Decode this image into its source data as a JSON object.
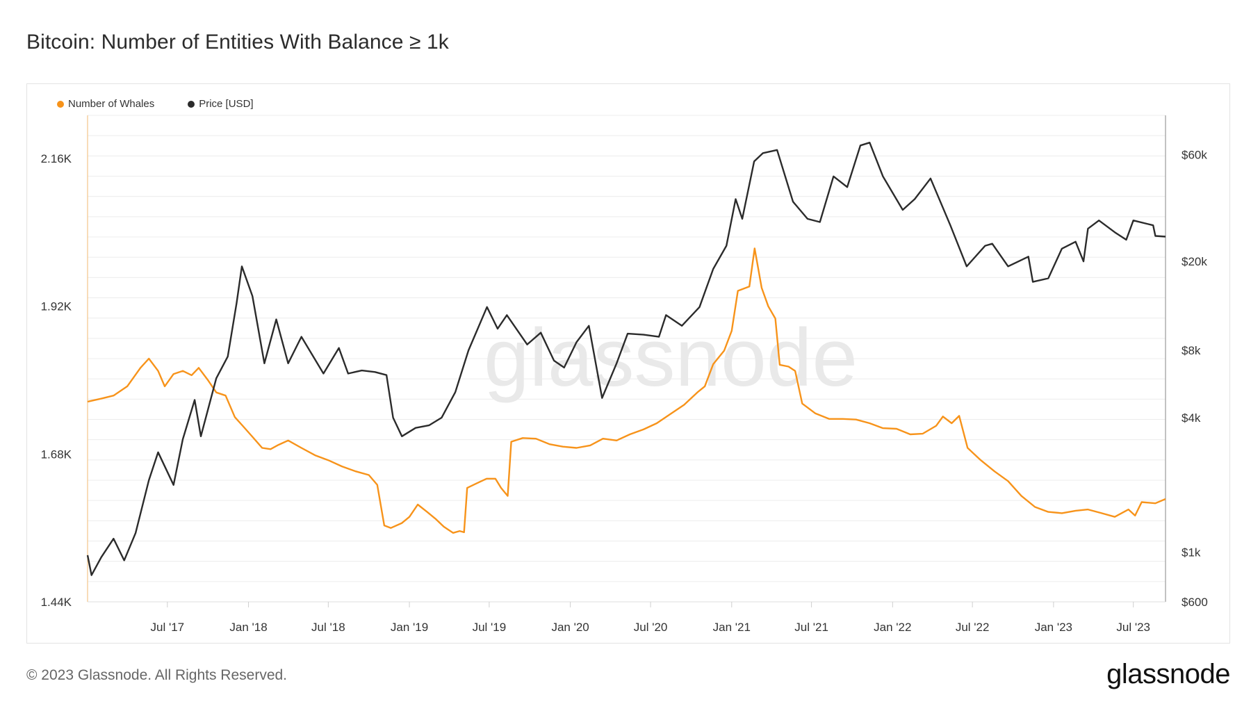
{
  "title": "Bitcoin: Number of Entities With Balance ≥ 1k",
  "footer": {
    "copyright": "© 2023 Glassnode. All Rights Reserved.",
    "logo": "glassnode",
    "watermark": "glassnode"
  },
  "colors": {
    "whales": "#f7931a",
    "price": "#2b2b2b",
    "grid": "#ececec",
    "axis_text": "#333333"
  },
  "chart_data": {
    "type": "line",
    "x_range": [
      "2017-01-01",
      "2023-09-12"
    ],
    "x_ticks": [
      {
        "date": "2017-07-01",
        "label": "Jul '17"
      },
      {
        "date": "2018-01-01",
        "label": "Jan '18"
      },
      {
        "date": "2018-07-01",
        "label": "Jul '18"
      },
      {
        "date": "2019-01-01",
        "label": "Jan '19"
      },
      {
        "date": "2019-07-01",
        "label": "Jul '19"
      },
      {
        "date": "2020-01-01",
        "label": "Jan '20"
      },
      {
        "date": "2020-07-01",
        "label": "Jul '20"
      },
      {
        "date": "2021-01-01",
        "label": "Jan '21"
      },
      {
        "date": "2021-07-01",
        "label": "Jul '21"
      },
      {
        "date": "2022-01-01",
        "label": "Jan '22"
      },
      {
        "date": "2022-07-01",
        "label": "Jul '22"
      },
      {
        "date": "2023-01-01",
        "label": "Jan '23"
      },
      {
        "date": "2023-07-01",
        "label": "Jul '23"
      }
    ],
    "y_left": {
      "scale": "linear",
      "range": [
        1440,
        2230
      ],
      "ticks": [
        {
          "value": 1440,
          "label": "1.44K"
        },
        {
          "value": 1680,
          "label": "1.68K"
        },
        {
          "value": 1920,
          "label": "1.92K"
        },
        {
          "value": 2160,
          "label": "2.16K"
        }
      ]
    },
    "y_right": {
      "scale": "log",
      "range": [
        600,
        90000
      ],
      "ticks": [
        {
          "value": 600,
          "label": "$600"
        },
        {
          "value": 1000,
          "label": "$1k"
        },
        {
          "value": 4000,
          "label": "$4k"
        },
        {
          "value": 8000,
          "label": "$8k"
        },
        {
          "value": 20000,
          "label": "$20k"
        },
        {
          "value": 60000,
          "label": "$60k"
        }
      ]
    },
    "legend_position": "top-left",
    "grid": true,
    "series": [
      {
        "name": "Number of Whales",
        "axis": "left",
        "points": [
          [
            "2017-01-01",
            1765
          ],
          [
            "2017-02-01",
            1770
          ],
          [
            "2017-03-01",
            1775
          ],
          [
            "2017-04-01",
            1790
          ],
          [
            "2017-05-01",
            1820
          ],
          [
            "2017-05-20",
            1835
          ],
          [
            "2017-06-10",
            1815
          ],
          [
            "2017-06-25",
            1790
          ],
          [
            "2017-07-15",
            1810
          ],
          [
            "2017-08-05",
            1815
          ],
          [
            "2017-08-25",
            1808
          ],
          [
            "2017-09-10",
            1820
          ],
          [
            "2017-10-01",
            1800
          ],
          [
            "2017-10-20",
            1780
          ],
          [
            "2017-11-10",
            1775
          ],
          [
            "2017-12-01",
            1740
          ],
          [
            "2017-12-20",
            1725
          ],
          [
            "2018-01-10",
            1708
          ],
          [
            "2018-02-01",
            1690
          ],
          [
            "2018-02-20",
            1688
          ],
          [
            "2018-03-10",
            1695
          ],
          [
            "2018-04-01",
            1702
          ],
          [
            "2018-05-01",
            1690
          ],
          [
            "2018-06-01",
            1678
          ],
          [
            "2018-07-01",
            1670
          ],
          [
            "2018-08-01",
            1660
          ],
          [
            "2018-09-01",
            1652
          ],
          [
            "2018-10-01",
            1646
          ],
          [
            "2018-10-20",
            1630
          ],
          [
            "2018-11-05",
            1564
          ],
          [
            "2018-11-20",
            1560
          ],
          [
            "2018-12-15",
            1568
          ],
          [
            "2019-01-01",
            1578
          ],
          [
            "2019-01-20",
            1598
          ],
          [
            "2019-02-10",
            1586
          ],
          [
            "2019-03-01",
            1575
          ],
          [
            "2019-03-20",
            1562
          ],
          [
            "2019-04-10",
            1552
          ],
          [
            "2019-04-25",
            1555
          ],
          [
            "2019-05-05",
            1553
          ],
          [
            "2019-05-12",
            1625
          ],
          [
            "2019-06-01",
            1632
          ],
          [
            "2019-06-25",
            1640
          ],
          [
            "2019-07-15",
            1640
          ],
          [
            "2019-07-28",
            1625
          ],
          [
            "2019-08-12",
            1612
          ],
          [
            "2019-08-20",
            1700
          ],
          [
            "2019-09-15",
            1706
          ],
          [
            "2019-10-15",
            1705
          ],
          [
            "2019-11-15",
            1696
          ],
          [
            "2019-12-15",
            1692
          ],
          [
            "2020-01-15",
            1690
          ],
          [
            "2020-02-15",
            1694
          ],
          [
            "2020-03-15",
            1705
          ],
          [
            "2020-04-15",
            1702
          ],
          [
            "2020-05-15",
            1712
          ],
          [
            "2020-06-15",
            1720
          ],
          [
            "2020-07-15",
            1730
          ],
          [
            "2020-08-15",
            1745
          ],
          [
            "2020-09-15",
            1760
          ],
          [
            "2020-10-15",
            1780
          ],
          [
            "2020-11-01",
            1790
          ],
          [
            "2020-11-20",
            1826
          ],
          [
            "2020-12-15",
            1848
          ],
          [
            "2021-01-01",
            1880
          ],
          [
            "2021-01-15",
            1945
          ],
          [
            "2021-02-10",
            1952
          ],
          [
            "2021-02-22",
            2014
          ],
          [
            "2021-03-10",
            1950
          ],
          [
            "2021-03-25",
            1920
          ],
          [
            "2021-04-10",
            1900
          ],
          [
            "2021-04-20",
            1825
          ],
          [
            "2021-05-10",
            1822
          ],
          [
            "2021-05-25",
            1815
          ],
          [
            "2021-06-10",
            1762
          ],
          [
            "2021-07-10",
            1746
          ],
          [
            "2021-08-10",
            1737
          ],
          [
            "2021-09-10",
            1737
          ],
          [
            "2021-10-10",
            1736
          ],
          [
            "2021-11-10",
            1730
          ],
          [
            "2021-12-10",
            1722
          ],
          [
            "2022-01-10",
            1721
          ],
          [
            "2022-02-10",
            1712
          ],
          [
            "2022-03-10",
            1713
          ],
          [
            "2022-04-10",
            1726
          ],
          [
            "2022-04-25",
            1741
          ],
          [
            "2022-05-15",
            1730
          ],
          [
            "2022-06-01",
            1742
          ],
          [
            "2022-06-20",
            1690
          ],
          [
            "2022-07-20",
            1670
          ],
          [
            "2022-08-20",
            1652
          ],
          [
            "2022-09-20",
            1636
          ],
          [
            "2022-10-20",
            1612
          ],
          [
            "2022-11-20",
            1594
          ],
          [
            "2022-12-20",
            1586
          ],
          [
            "2023-01-20",
            1584
          ],
          [
            "2023-02-20",
            1588
          ],
          [
            "2023-03-20",
            1590
          ],
          [
            "2023-04-20",
            1584
          ],
          [
            "2023-05-20",
            1578
          ],
          [
            "2023-06-20",
            1590
          ],
          [
            "2023-07-05",
            1580
          ],
          [
            "2023-07-20",
            1602
          ],
          [
            "2023-08-20",
            1600
          ],
          [
            "2023-09-12",
            1607
          ]
        ]
      },
      {
        "name": "Price [USD]",
        "axis": "right",
        "points": [
          [
            "2017-01-01",
            970
          ],
          [
            "2017-01-10",
            790
          ],
          [
            "2017-02-01",
            950
          ],
          [
            "2017-03-01",
            1150
          ],
          [
            "2017-03-25",
            920
          ],
          [
            "2017-04-20",
            1220
          ],
          [
            "2017-05-20",
            2100
          ],
          [
            "2017-06-10",
            2800
          ],
          [
            "2017-07-15",
            2000
          ],
          [
            "2017-08-05",
            3200
          ],
          [
            "2017-09-01",
            4800
          ],
          [
            "2017-09-15",
            3300
          ],
          [
            "2017-10-20",
            6000
          ],
          [
            "2017-11-15",
            7500
          ],
          [
            "2017-12-05",
            13000
          ],
          [
            "2017-12-17",
            19000
          ],
          [
            "2018-01-10",
            14000
          ],
          [
            "2018-02-06",
            7000
          ],
          [
            "2018-03-05",
            11000
          ],
          [
            "2018-04-01",
            7000
          ],
          [
            "2018-05-01",
            9200
          ],
          [
            "2018-06-20",
            6300
          ],
          [
            "2018-07-25",
            8200
          ],
          [
            "2018-08-15",
            6300
          ],
          [
            "2018-09-15",
            6500
          ],
          [
            "2018-10-15",
            6400
          ],
          [
            "2018-11-10",
            6200
          ],
          [
            "2018-11-25",
            4000
          ],
          [
            "2018-12-15",
            3300
          ],
          [
            "2019-01-15",
            3600
          ],
          [
            "2019-02-15",
            3700
          ],
          [
            "2019-03-15",
            4000
          ],
          [
            "2019-04-15",
            5200
          ],
          [
            "2019-05-15",
            8000
          ],
          [
            "2019-06-26",
            12500
          ],
          [
            "2019-07-20",
            10000
          ],
          [
            "2019-08-10",
            11500
          ],
          [
            "2019-09-25",
            8500
          ],
          [
            "2019-10-26",
            9600
          ],
          [
            "2019-11-25",
            7200
          ],
          [
            "2019-12-18",
            6700
          ],
          [
            "2020-01-15",
            8700
          ],
          [
            "2020-02-12",
            10300
          ],
          [
            "2020-03-13",
            4900
          ],
          [
            "2020-04-15",
            7000
          ],
          [
            "2020-05-10",
            9500
          ],
          [
            "2020-06-15",
            9400
          ],
          [
            "2020-07-20",
            9200
          ],
          [
            "2020-08-05",
            11500
          ],
          [
            "2020-09-10",
            10300
          ],
          [
            "2020-10-20",
            12500
          ],
          [
            "2020-11-20",
            18500
          ],
          [
            "2020-12-20",
            23500
          ],
          [
            "2021-01-10",
            38000
          ],
          [
            "2021-01-25",
            31000
          ],
          [
            "2021-02-21",
            56000
          ],
          [
            "2021-03-13",
            61000
          ],
          [
            "2021-04-14",
            63000
          ],
          [
            "2021-05-20",
            37000
          ],
          [
            "2021-06-22",
            31000
          ],
          [
            "2021-07-20",
            30000
          ],
          [
            "2021-08-20",
            48000
          ],
          [
            "2021-09-20",
            43000
          ],
          [
            "2021-10-20",
            66000
          ],
          [
            "2021-11-10",
            68000
          ],
          [
            "2021-12-10",
            48000
          ],
          [
            "2022-01-24",
            34000
          ],
          [
            "2022-02-20",
            38000
          ],
          [
            "2022-03-28",
            47000
          ],
          [
            "2022-05-12",
            29000
          ],
          [
            "2022-06-18",
            19000
          ],
          [
            "2022-07-30",
            23500
          ],
          [
            "2022-08-15",
            24000
          ],
          [
            "2022-09-20",
            19000
          ],
          [
            "2022-11-05",
            21000
          ],
          [
            "2022-11-15",
            16200
          ],
          [
            "2022-12-20",
            16800
          ],
          [
            "2023-01-20",
            22800
          ],
          [
            "2023-02-20",
            24500
          ],
          [
            "2023-03-10",
            20000
          ],
          [
            "2023-03-20",
            28000
          ],
          [
            "2023-04-14",
            30500
          ],
          [
            "2023-05-20",
            27000
          ],
          [
            "2023-06-15",
            25000
          ],
          [
            "2023-07-01",
            30500
          ],
          [
            "2023-08-15",
            29000
          ],
          [
            "2023-08-20",
            26000
          ],
          [
            "2023-09-12",
            25800
          ]
        ]
      }
    ]
  }
}
